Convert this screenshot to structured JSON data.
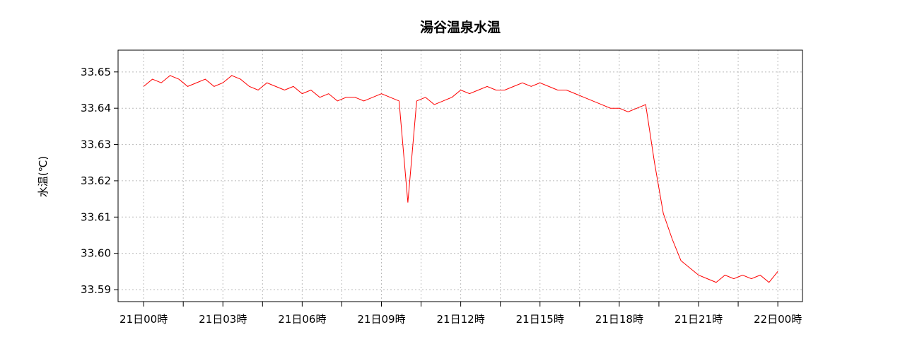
{
  "chart_data": {
    "type": "line",
    "title": "湯谷温泉水温",
    "y_label": "水温(℃)",
    "x": [
      0,
      20,
      40,
      60,
      80,
      100,
      120,
      140,
      160,
      180,
      200,
      220,
      240,
      260,
      280,
      300,
      320,
      340,
      360,
      380,
      400,
      420,
      440,
      460,
      480,
      500,
      520,
      540,
      560,
      580,
      600,
      620,
      640,
      660,
      680,
      700,
      720,
      740,
      760,
      780,
      800,
      820,
      840,
      860,
      880,
      900,
      920,
      940,
      960,
      980,
      1000,
      1020,
      1040,
      1060,
      1080,
      1100,
      1120,
      1140,
      1160,
      1180,
      1200,
      1220,
      1240,
      1260,
      1280,
      1300,
      1320,
      1340,
      1360,
      1380,
      1400,
      1420,
      1440
    ],
    "series": [
      {
        "name": "水温",
        "color": "#ff0000",
        "values": [
          33.646,
          33.648,
          33.647,
          33.649,
          33.648,
          33.646,
          33.647,
          33.648,
          33.646,
          33.647,
          33.649,
          33.648,
          33.646,
          33.645,
          33.647,
          33.646,
          33.645,
          33.646,
          33.644,
          33.645,
          33.643,
          33.644,
          33.642,
          33.643,
          33.643,
          33.642,
          33.643,
          33.644,
          33.643,
          33.642,
          33.614,
          33.642,
          33.643,
          33.641,
          33.642,
          33.643,
          33.645,
          33.644,
          33.645,
          33.646,
          33.645,
          33.645,
          33.646,
          33.647,
          33.646,
          33.647,
          33.646,
          33.645,
          33.645,
          33.644,
          33.643,
          33.642,
          33.641,
          33.64,
          33.64,
          33.639,
          33.64,
          33.641,
          33.625,
          33.611,
          33.604,
          33.598,
          33.596,
          33.594,
          33.593,
          33.592,
          33.594,
          33.593,
          33.594,
          33.593,
          33.594,
          33.592,
          33.595
        ]
      }
    ],
    "xlim": [
      -58,
      1496
    ],
    "xticks": [
      {
        "value": 0,
        "label": "21日00時"
      },
      {
        "value": 180,
        "label": "21日03時"
      },
      {
        "value": 360,
        "label": "21日06時"
      },
      {
        "value": 540,
        "label": "21日09時"
      },
      {
        "value": 720,
        "label": "21日12時"
      },
      {
        "value": 900,
        "label": "21日15時"
      },
      {
        "value": 1080,
        "label": "21日18時"
      },
      {
        "value": 1260,
        "label": "21日21時"
      },
      {
        "value": 1440,
        "label": "22日00時"
      }
    ],
    "xminor_ticks": [
      90,
      270,
      450,
      630,
      810,
      990,
      1170,
      1350
    ],
    "ylim": [
      33.5867,
      33.656
    ],
    "yticks": [
      {
        "value": 33.59,
        "label": "33.59"
      },
      {
        "value": 33.6,
        "label": "33.60"
      },
      {
        "value": 33.61,
        "label": "33.61"
      },
      {
        "value": 33.62,
        "label": "33.62"
      },
      {
        "value": 33.63,
        "label": "33.63"
      },
      {
        "value": 33.64,
        "label": "33.64"
      },
      {
        "value": 33.65,
        "label": "33.65"
      }
    ],
    "grid": true
  }
}
